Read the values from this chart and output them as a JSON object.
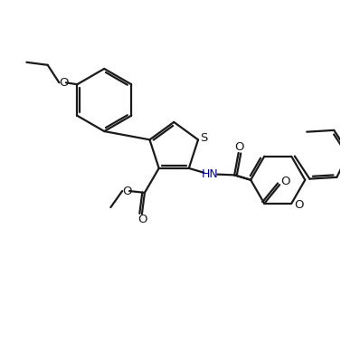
{
  "background_color": "#ffffff",
  "line_color": "#1a1a1a",
  "S_color": "#1a1a1a",
  "O_color": "#1a1a1a",
  "HN_color": "#00008b",
  "line_width": 1.6,
  "figsize": [
    3.77,
    3.9
  ],
  "dpi": 100,
  "xlim": [
    0,
    10
  ],
  "ylim": [
    0,
    10
  ]
}
